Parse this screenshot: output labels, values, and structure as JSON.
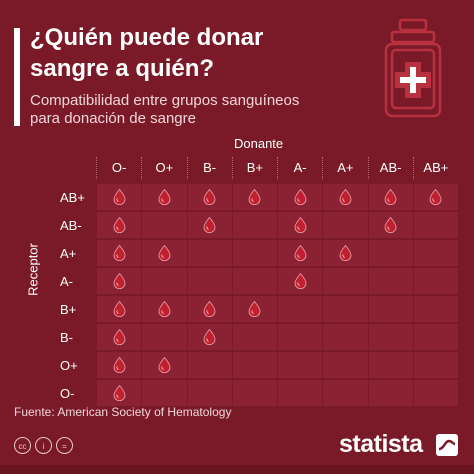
{
  "title": "¿Quién puede donar\nsangre a quién?",
  "subtitle": "Compatibilidad entre grupos sanguíneos\npara donación de sangre",
  "donante_label": "Donante",
  "receptor_label": "Receptor",
  "columns": [
    "O-",
    "O+",
    "B-",
    "B+",
    "A-",
    "A+",
    "AB-",
    "AB+"
  ],
  "rows": [
    {
      "label": "AB+",
      "compatible": [
        true,
        true,
        true,
        true,
        true,
        true,
        true,
        true
      ]
    },
    {
      "label": "AB-",
      "compatible": [
        true,
        false,
        true,
        false,
        true,
        false,
        true,
        false
      ]
    },
    {
      "label": "A+",
      "compatible": [
        true,
        true,
        false,
        false,
        true,
        true,
        false,
        false
      ]
    },
    {
      "label": "A-",
      "compatible": [
        true,
        false,
        false,
        false,
        true,
        false,
        false,
        false
      ]
    },
    {
      "label": "B+",
      "compatible": [
        true,
        true,
        true,
        true,
        false,
        false,
        false,
        false
      ]
    },
    {
      "label": "B-",
      "compatible": [
        true,
        false,
        true,
        false,
        false,
        false,
        false,
        false
      ]
    },
    {
      "label": "O+",
      "compatible": [
        true,
        true,
        false,
        false,
        false,
        false,
        false,
        false
      ]
    },
    {
      "label": "O-",
      "compatible": [
        true,
        false,
        false,
        false,
        false,
        false,
        false,
        false
      ]
    }
  ],
  "source": "Fuente: American Society of Hematology",
  "brand": "statista",
  "license_icons": [
    "cc",
    "i",
    "="
  ],
  "colors": {
    "background": "#7a1a28",
    "cell": "#8a2233",
    "drop": "#c0202f"
  },
  "icons": {
    "bag": "blood-bag-icon",
    "drop": "blood-drop-icon"
  }
}
